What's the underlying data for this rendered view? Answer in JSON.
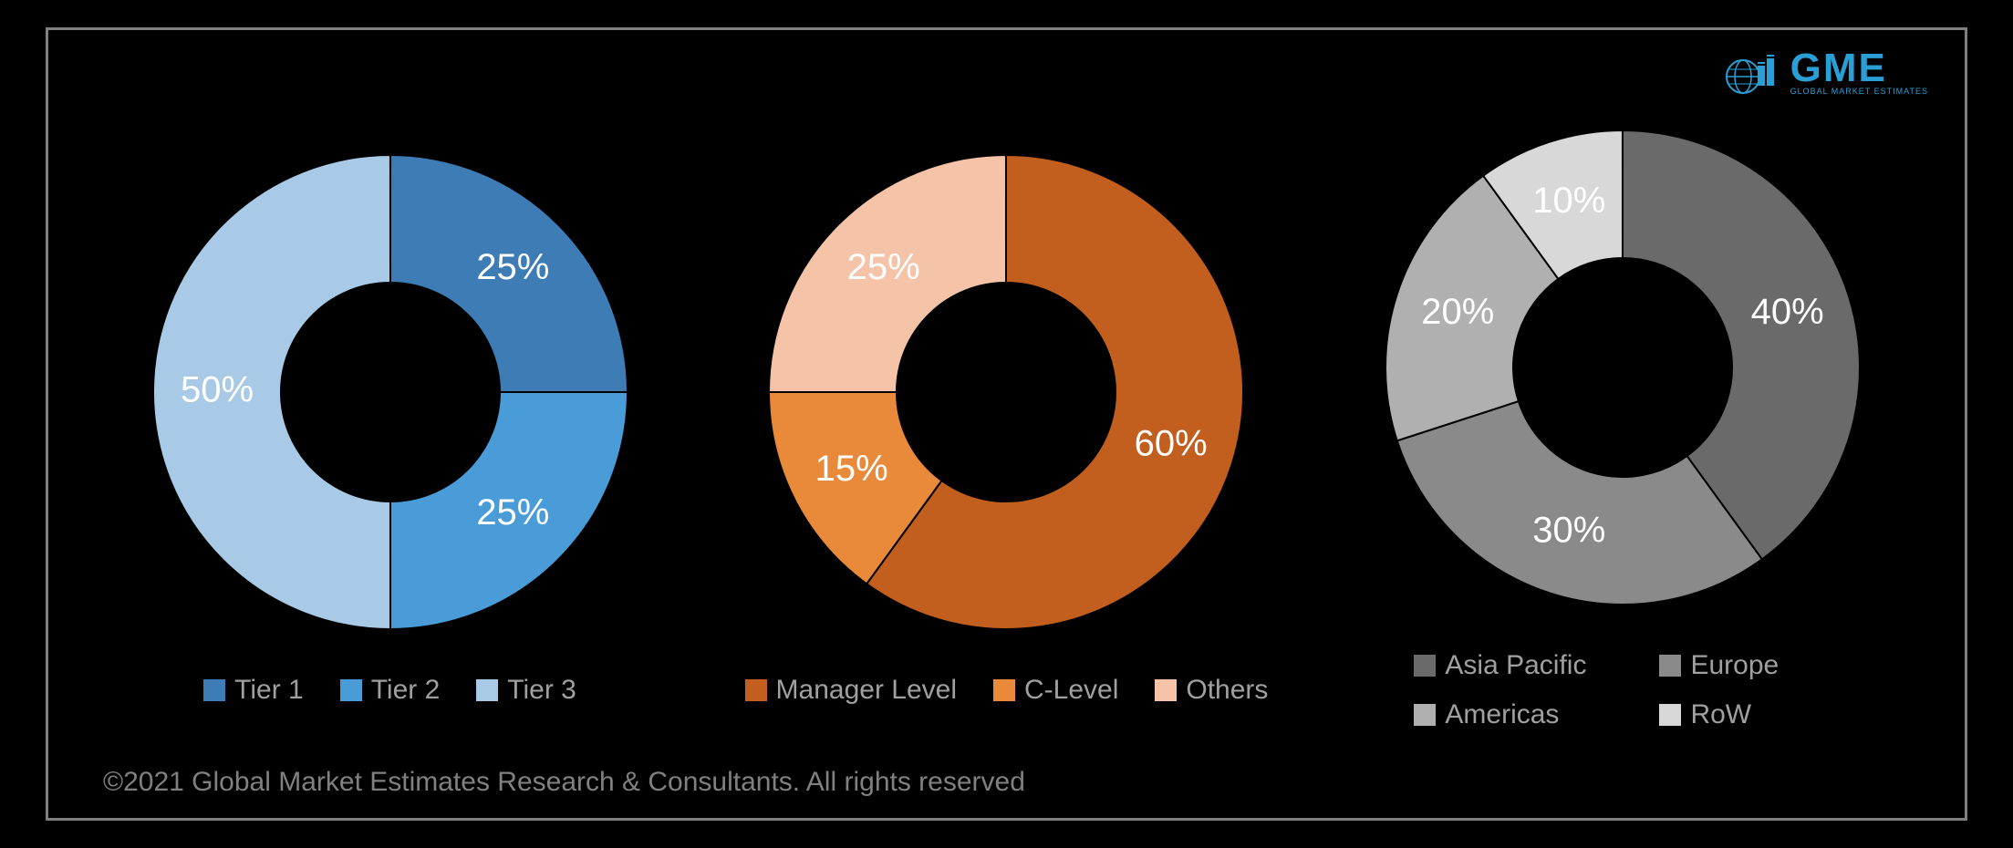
{
  "logo": {
    "text": "GME",
    "subtitle": "GLOBAL MARKET ESTIMATES",
    "color": "#2a9fd6"
  },
  "charts": [
    {
      "type": "donut",
      "outer_radius": 260,
      "inner_radius": 120,
      "background": "#000000",
      "label_fontsize": 40,
      "label_color": "#ffffff",
      "slices": [
        {
          "label": "Tier 1",
          "value": 25,
          "color": "#3d7cb5",
          "text": "25%"
        },
        {
          "label": "Tier 2",
          "value": 25,
          "color": "#4a9cd8",
          "text": "25%"
        },
        {
          "label": "Tier 3",
          "value": 50,
          "color": "#a8cae6",
          "text": "50%"
        }
      ],
      "legend": [
        {
          "label": "Tier 1",
          "color": "#3d7cb5"
        },
        {
          "label": "Tier 2",
          "color": "#4a9cd8"
        },
        {
          "label": "Tier 3",
          "color": "#a8cae6"
        }
      ]
    },
    {
      "type": "donut",
      "outer_radius": 260,
      "inner_radius": 120,
      "background": "#000000",
      "label_fontsize": 40,
      "label_color": "#ffffff",
      "slices": [
        {
          "label": "Manager Level",
          "value": 60,
          "color": "#c25f1e",
          "text": "60%"
        },
        {
          "label": "C-Level",
          "value": 15,
          "color": "#e88a3a",
          "text": "15%"
        },
        {
          "label": "Others",
          "value": 25,
          "color": "#f4c3a8",
          "text": "25%"
        }
      ],
      "legend": [
        {
          "label": "Manager Level",
          "color": "#c25f1e"
        },
        {
          "label": "C-Level",
          "color": "#e88a3a"
        },
        {
          "label": "Others",
          "color": "#f4c3a8"
        }
      ]
    },
    {
      "type": "donut",
      "outer_radius": 260,
      "inner_radius": 120,
      "background": "#000000",
      "label_fontsize": 40,
      "label_color": "#ffffff",
      "slices": [
        {
          "label": "Asia Pacific",
          "value": 40,
          "color": "#6a6a6a",
          "text": "40%"
        },
        {
          "label": "Europe",
          "value": 30,
          "color": "#8a8a8a",
          "text": "30%"
        },
        {
          "label": "Americas",
          "value": 20,
          "color": "#b0b0b0",
          "text": "20%"
        },
        {
          "label": "RoW",
          "value": 10,
          "color": "#d8d8d8",
          "text": "10%"
        }
      ],
      "legend": [
        {
          "label": "Asia Pacific",
          "color": "#6a6a6a"
        },
        {
          "label": "Europe",
          "color": "#8a8a8a"
        },
        {
          "label": "Americas",
          "color": "#b0b0b0"
        },
        {
          "label": "RoW",
          "color": "#d8d8d8"
        }
      ],
      "legend_two_col": true
    }
  ],
  "copyright": "©2021 Global Market Estimates Research & Consultants. All rights reserved",
  "legend_text_color": "#a0a0a0",
  "legend_fontsize": 30
}
